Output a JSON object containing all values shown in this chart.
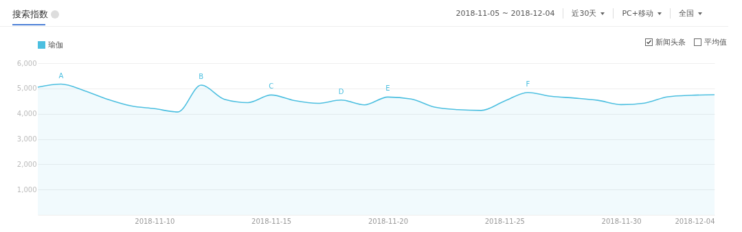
{
  "chart_data": {
    "type": "area",
    "title": "搜索指数",
    "x": [
      "2018-11-05",
      "2018-11-06",
      "2018-11-07",
      "2018-11-08",
      "2018-11-09",
      "2018-11-10",
      "2018-11-11",
      "2018-11-12",
      "2018-11-13",
      "2018-11-14",
      "2018-11-15",
      "2018-11-16",
      "2018-11-17",
      "2018-11-18",
      "2018-11-19",
      "2018-11-20",
      "2018-11-21",
      "2018-11-22",
      "2018-11-23",
      "2018-11-24",
      "2018-11-25",
      "2018-11-26",
      "2018-11-27",
      "2018-11-28",
      "2018-11-29",
      "2018-11-30",
      "2018-12-01",
      "2018-12-02",
      "2018-12-03",
      "2018-12-04"
    ],
    "series": [
      {
        "name": "瑜伽",
        "color": "#4cbfe0",
        "values": [
          5050,
          5170,
          4910,
          4570,
          4310,
          4200,
          4070,
          5130,
          4570,
          4440,
          4740,
          4520,
          4410,
          4540,
          4350,
          4660,
          4580,
          4260,
          4160,
          4130,
          4500,
          4840,
          4690,
          4620,
          4530,
          4360,
          4420,
          4670,
          4730,
          4750
        ]
      }
    ],
    "xlim": [
      "2018-11-05",
      "2018-12-04"
    ],
    "xticks": [
      {
        "value": "2018-11-10",
        "label": "2018-11-10"
      },
      {
        "value": "2018-11-15",
        "label": "2018-11-15"
      },
      {
        "value": "2018-11-20",
        "label": "2018-11-20"
      },
      {
        "value": "2018-11-25",
        "label": "2018-11-25"
      },
      {
        "value": "2018-11-30",
        "label": "2018-11-30"
      },
      {
        "value": "2018-12-04",
        "label": "2018-12-04"
      }
    ],
    "ylim": [
      0,
      6000
    ],
    "yticks": [
      {
        "value": 1000,
        "label": "1,000"
      },
      {
        "value": 2000,
        "label": "2,000"
      },
      {
        "value": 3000,
        "label": "3,000"
      },
      {
        "value": 4000,
        "label": "4,000"
      },
      {
        "value": 5000,
        "label": "5,000"
      },
      {
        "value": 6000,
        "label": "6,000"
      }
    ],
    "grid": "y",
    "legend": "top left",
    "marker": "none",
    "line_style": "solid",
    "annotations": [
      "2018-11-05 ~ 2018-12-04",
      "近30天",
      "PC+移动",
      "全国",
      "新闻头条",
      "平均值",
      {
        "text": "A",
        "x": "2018-11-06",
        "y": 5170
      },
      {
        "text": "B",
        "x": "2018-11-12",
        "y": 5130
      },
      {
        "text": "C",
        "x": "2018-11-15",
        "y": 4740
      },
      {
        "text": "D",
        "x": "2018-11-18",
        "y": 4540
      },
      {
        "text": "E",
        "x": "2018-11-20",
        "y": 4660
      },
      {
        "text": "F",
        "x": "2018-11-26",
        "y": 4840
      }
    ]
  }
}
